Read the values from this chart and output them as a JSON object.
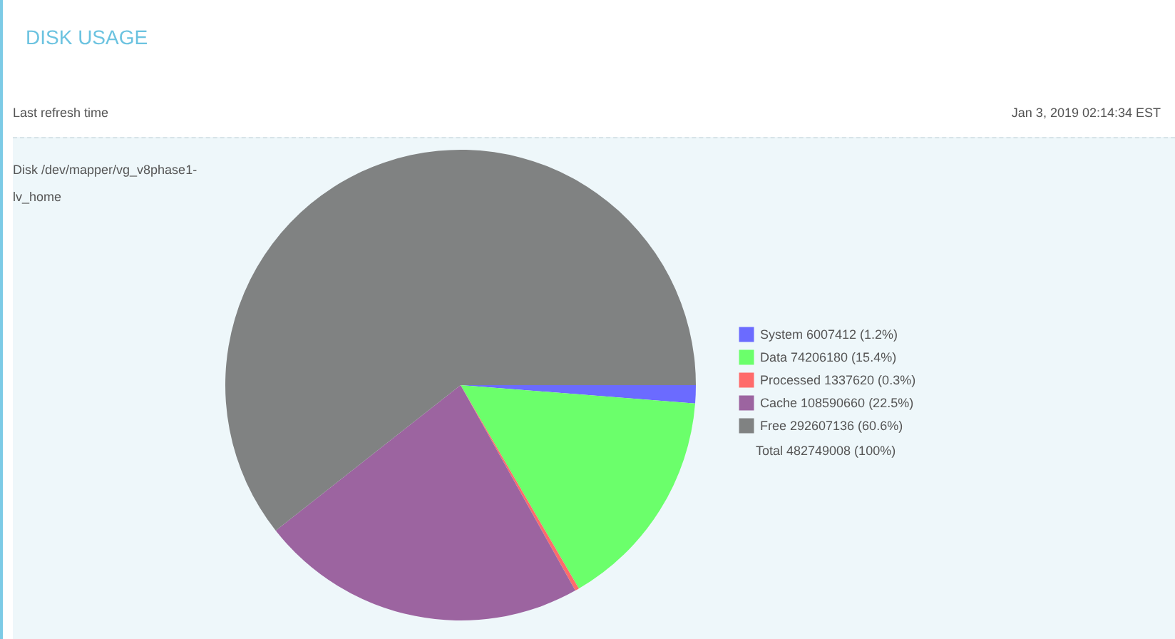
{
  "chart_data": {
    "type": "pie",
    "title": "DISK USAGE",
    "subtitle": "Disk /dev/mapper/vg_v8phase1-lv_home",
    "categories": [
      "System",
      "Data",
      "Processed",
      "Cache",
      "Free"
    ],
    "values": [
      6007412,
      74206180,
      1337620,
      108590660,
      292607136
    ],
    "colors": [
      "#6b6bff",
      "#6bff6b",
      "#ff6b6b",
      "#9c64a0",
      "#808282"
    ],
    "value_labels": [
      "6007412 (1.2%)",
      "74206180 (15.4%)",
      "1337620 (0.3%)",
      "108590660 (22.5%)",
      "292607136 (60.6%)"
    ],
    "legend": "right",
    "annotations": [
      "Last refresh time",
      "Jan 3, 2019 02:14:34 EST",
      "Total 482749008 (100%)"
    ]
  }
}
